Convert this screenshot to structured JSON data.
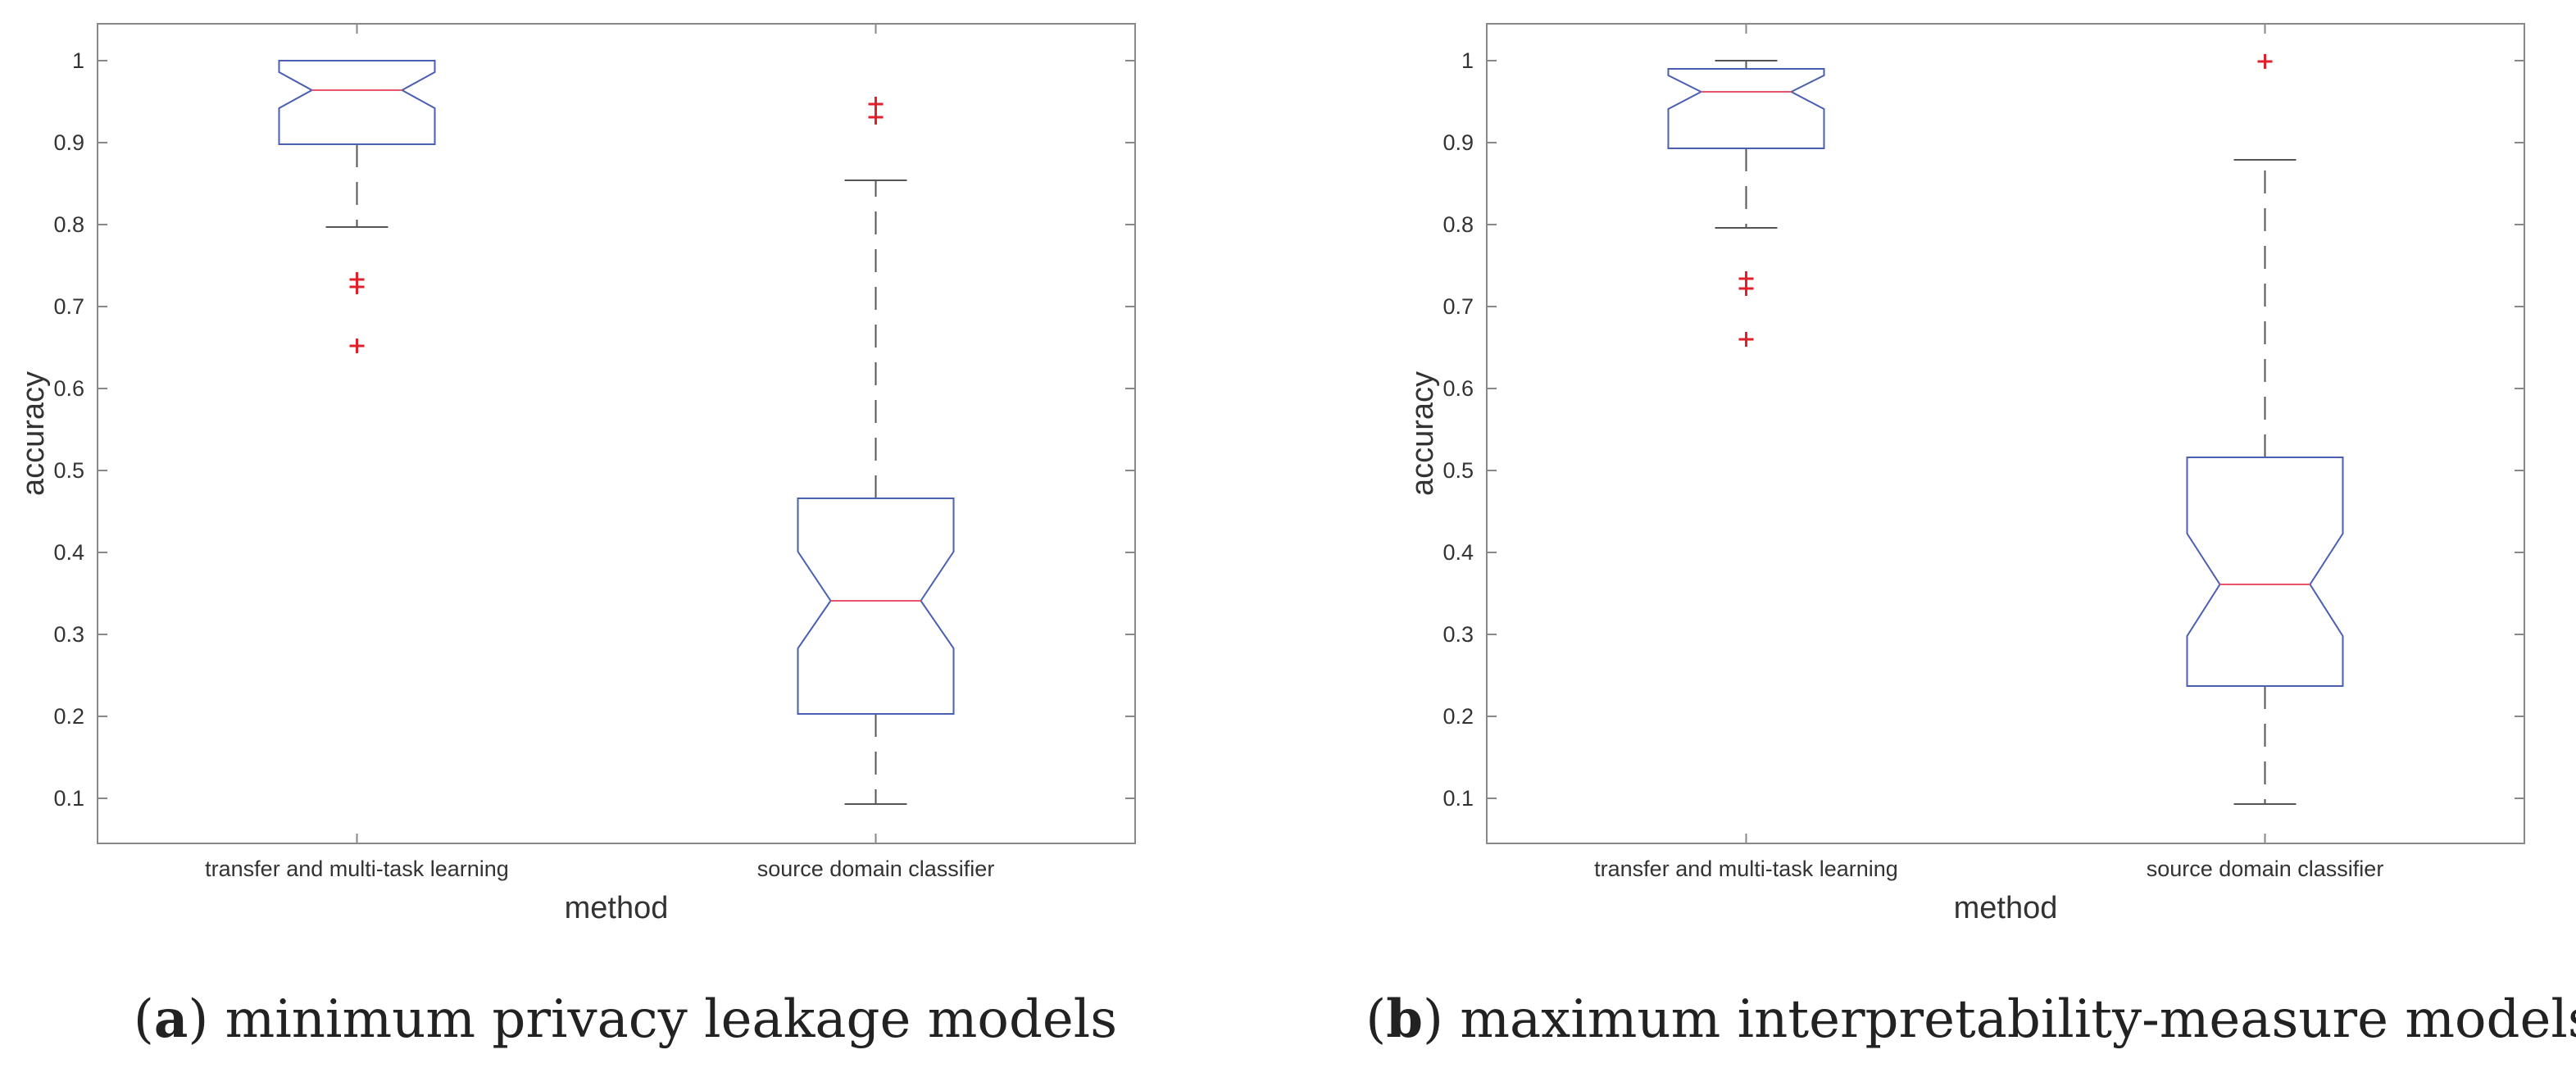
{
  "chart_data": [
    {
      "type": "boxplot",
      "notched": true,
      "caption_letter": "a",
      "caption": "minimum privacy leakage models",
      "xlabel": "method",
      "ylabel": "accuracy",
      "ylim": [
        0.045,
        1.045
      ],
      "yticks": [
        "0.1",
        "0.2",
        "0.3",
        "0.4",
        "0.5",
        "0.6",
        "0.7",
        "0.8",
        "0.9",
        "1"
      ],
      "categories": [
        "transfer and multi-task learning",
        "source domain classifier"
      ],
      "boxes": [
        {
          "q1": 0.898,
          "median": 0.964,
          "q3": 1.0,
          "notch_low": 0.942,
          "notch_high": 0.986,
          "whisker_low": 0.797,
          "whisker_high": 1.0,
          "outliers": [
            0.733,
            0.724,
            0.652
          ]
        },
        {
          "q1": 0.203,
          "median": 0.341,
          "q3": 0.466,
          "notch_low": 0.283,
          "notch_high": 0.401,
          "whisker_low": 0.093,
          "whisker_high": 0.854,
          "outliers": [
            0.947,
            0.931
          ]
        }
      ],
      "grid": false
    },
    {
      "type": "boxplot",
      "notched": true,
      "caption_letter": "b",
      "caption": "maximum interpretability-measure models",
      "xlabel": "method",
      "ylabel": "accuracy",
      "ylim": [
        0.045,
        1.045
      ],
      "yticks": [
        "0.1",
        "0.2",
        "0.3",
        "0.4",
        "0.5",
        "0.6",
        "0.7",
        "0.8",
        "0.9",
        "1"
      ],
      "categories": [
        "transfer and multi-task learning",
        "source domain classifier"
      ],
      "boxes": [
        {
          "q1": 0.893,
          "median": 0.962,
          "q3": 0.99,
          "notch_low": 0.941,
          "notch_high": 0.982,
          "whisker_low": 0.796,
          "whisker_high": 1.0,
          "outliers": [
            0.734,
            0.722,
            0.66
          ]
        },
        {
          "q1": 0.237,
          "median": 0.361,
          "q3": 0.516,
          "notch_low": 0.298,
          "notch_high": 0.423,
          "whisker_low": 0.093,
          "whisker_high": 0.879,
          "outliers": [
            0.999
          ]
        }
      ],
      "grid": false
    }
  ],
  "colors": {
    "box": "#4a5fb0",
    "median": "#e8546b",
    "whisker": "#555555",
    "outlier": "#e0202a",
    "axes": "#888888"
  }
}
